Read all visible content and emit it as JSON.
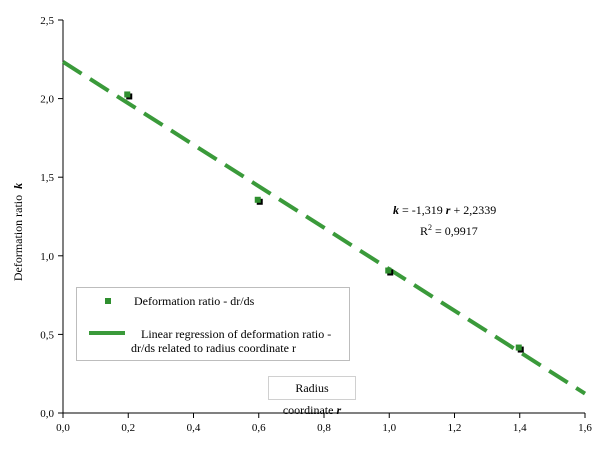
{
  "chart_data": {
    "type": "scatter",
    "xlabel": "Radius coordinate",
    "xlabel_var": "r",
    "ylabel": "Deformation ratio",
    "ylabel_var": "k",
    "xlim": [
      0.0,
      1.6
    ],
    "ylim": [
      0.0,
      2.5
    ],
    "xticks": [
      "0,0",
      "0,2",
      "0,4",
      "0,6",
      "0,8",
      "1,0",
      "1,2",
      "1,4",
      "1,6"
    ],
    "yticks": [
      "0,0",
      "0,5",
      "1,0",
      "1,5",
      "2,0",
      "2,5"
    ],
    "grid": false,
    "legend_position": "bottom-left",
    "series": [
      {
        "name": "Deformation ratio - dr/ds",
        "kind": "scatter",
        "color": "#2f8f2f",
        "shadow_color": "#000000",
        "x": [
          0.2,
          0.6,
          1.0,
          1.4
        ],
        "y": [
          2.02,
          1.35,
          0.9,
          0.41
        ]
      },
      {
        "name_line1": "Linear regression of deformation ratio -",
        "name_line2": "dr/ds related to radius coordinate r",
        "kind": "dashed-line",
        "color": "#3a9a3a",
        "slope": -1.319,
        "intercept": 2.2339
      }
    ],
    "annotation": {
      "eq_k": "k",
      "eq_mid": "= -1,319",
      "eq_r": "r",
      "eq_end": "+ 2,2339",
      "r2_prefix": "R",
      "r2_sup": "2",
      "r2_value": "= 0,9917"
    }
  }
}
